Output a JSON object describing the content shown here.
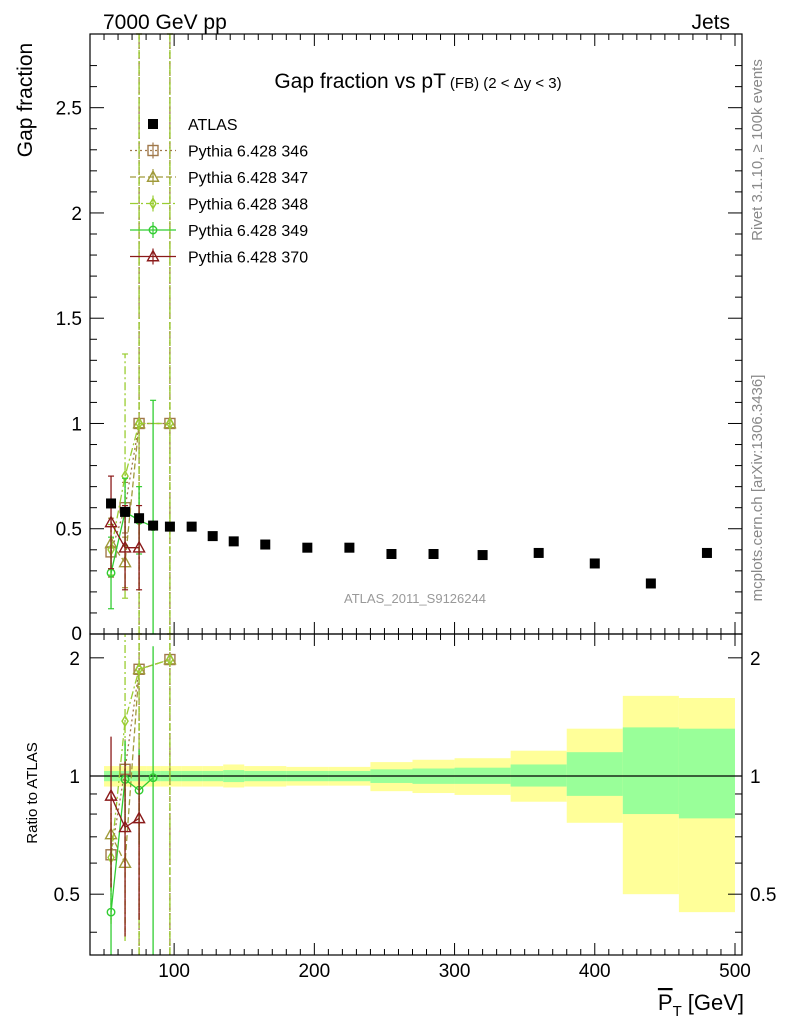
{
  "header": {
    "left": "7000 GeV pp",
    "right": "Jets"
  },
  "side_labels": {
    "rivet": "Rivet 3.1.10, ≥ 100k events",
    "mcplots": "mcplots.cern.ch [arXiv:1306.3436]"
  },
  "chart_data": {
    "type": "scatter",
    "title_main": "Gap fraction vs pT",
    "title_sub": "(FB) (2 < Δy < 3)",
    "ylabel": "Gap fraction",
    "ratio_ylabel": "Ratio to ATLAS",
    "xlabel": "P_T [GeV]",
    "xlabel_main": "P",
    "xlabel_sub": "T",
    "xlabel_unit": "[GeV]",
    "watermark": "ATLAS_2011_S9126244",
    "xlim": [
      40,
      505
    ],
    "ylim": [
      0,
      2.85
    ],
    "ratio_ylim": [
      0.35,
      2.3
    ],
    "x_ticks": [
      100,
      200,
      300,
      400,
      500
    ],
    "x_tick_labels": [
      "100",
      "200",
      "300",
      "400",
      "500"
    ],
    "y_ticks": [
      0.5,
      1,
      1.5,
      2,
      2.5
    ],
    "y_tick_labels": [
      "0.5",
      "1",
      "1.5",
      "2",
      "2.5"
    ],
    "y_bottom_label": "0",
    "ratio_y_ticks": [
      0.5,
      1,
      2
    ],
    "ratio_y_tick_labels": [
      "0.5",
      "1",
      "2"
    ],
    "data": {
      "name": "ATLAS",
      "color": "#000000",
      "points": [
        {
          "x": 55,
          "y": 0.62
        },
        {
          "x": 65,
          "y": 0.58
        },
        {
          "x": 75,
          "y": 0.55
        },
        {
          "x": 85,
          "y": 0.515
        },
        {
          "x": 97,
          "y": 0.51
        },
        {
          "x": 112.5,
          "y": 0.51
        },
        {
          "x": 127.5,
          "y": 0.465
        },
        {
          "x": 142.5,
          "y": 0.44
        },
        {
          "x": 165,
          "y": 0.425
        },
        {
          "x": 195,
          "y": 0.41
        },
        {
          "x": 225,
          "y": 0.41
        },
        {
          "x": 255,
          "y": 0.38
        },
        {
          "x": 285,
          "y": 0.38
        },
        {
          "x": 320,
          "y": 0.375
        },
        {
          "x": 360,
          "y": 0.385
        },
        {
          "x": 400,
          "y": 0.335
        },
        {
          "x": 440,
          "y": 0.24
        },
        {
          "x": 480,
          "y": 0.385
        }
      ]
    },
    "bands": [
      {
        "lo": 50,
        "hi": 60,
        "inner": [
          0.97,
          1.03
        ],
        "outer": [
          0.94,
          1.06
        ]
      },
      {
        "lo": 60,
        "hi": 70,
        "inner": [
          0.97,
          1.03
        ],
        "outer": [
          0.94,
          1.06
        ]
      },
      {
        "lo": 70,
        "hi": 80,
        "inner": [
          0.97,
          1.03
        ],
        "outer": [
          0.94,
          1.06
        ]
      },
      {
        "lo": 80,
        "hi": 90,
        "inner": [
          0.97,
          1.03
        ],
        "outer": [
          0.94,
          1.06
        ]
      },
      {
        "lo": 90,
        "hi": 105,
        "inner": [
          0.97,
          1.03
        ],
        "outer": [
          0.94,
          1.06
        ]
      },
      {
        "lo": 105,
        "hi": 120,
        "inner": [
          0.97,
          1.03
        ],
        "outer": [
          0.94,
          1.06
        ]
      },
      {
        "lo": 120,
        "hi": 135,
        "inner": [
          0.97,
          1.03
        ],
        "outer": [
          0.94,
          1.06
        ]
      },
      {
        "lo": 135,
        "hi": 150,
        "inner": [
          0.965,
          1.035
        ],
        "outer": [
          0.935,
          1.07
        ]
      },
      {
        "lo": 150,
        "hi": 180,
        "inner": [
          0.97,
          1.03
        ],
        "outer": [
          0.94,
          1.06
        ]
      },
      {
        "lo": 180,
        "hi": 210,
        "inner": [
          0.97,
          1.03
        ],
        "outer": [
          0.945,
          1.055
        ]
      },
      {
        "lo": 210,
        "hi": 240,
        "inner": [
          0.97,
          1.03
        ],
        "outer": [
          0.945,
          1.055
        ]
      },
      {
        "lo": 240,
        "hi": 270,
        "inner": [
          0.96,
          1.04
        ],
        "outer": [
          0.915,
          1.085
        ]
      },
      {
        "lo": 270,
        "hi": 300,
        "inner": [
          0.955,
          1.045
        ],
        "outer": [
          0.905,
          1.1
        ]
      },
      {
        "lo": 300,
        "hi": 340,
        "inner": [
          0.955,
          1.05
        ],
        "outer": [
          0.895,
          1.11
        ]
      },
      {
        "lo": 340,
        "hi": 380,
        "inner": [
          0.94,
          1.07
        ],
        "outer": [
          0.86,
          1.16
        ]
      },
      {
        "lo": 380,
        "hi": 420,
        "inner": [
          0.89,
          1.15
        ],
        "outer": [
          0.76,
          1.32
        ]
      },
      {
        "lo": 420,
        "hi": 460,
        "inner": [
          0.8,
          1.33
        ],
        "outer": [
          0.5,
          1.6
        ]
      },
      {
        "lo": 460,
        "hi": 500,
        "inner": [
          0.78,
          1.32
        ],
        "outer": [
          0.45,
          1.58
        ]
      }
    ],
    "series": [
      {
        "name": "Pythia 6.428 346",
        "color": "#a0784a",
        "marker": "square-open",
        "dash": "2,3",
        "points": [
          {
            "x": 55,
            "y": 0.39,
            "e": 0.12,
            "r": 0.63,
            "re": 0.2
          },
          {
            "x": 65,
            "y": 0.6,
            "e": 0.12,
            "r": 1.04,
            "re": 0.2
          },
          {
            "x": 75,
            "y": 1.0,
            "e": 1.9,
            "r": 1.87,
            "re": 2.5
          },
          {
            "x": 97,
            "y": 1.0,
            "e": 1.9,
            "r": 1.98,
            "re": 2.5
          }
        ]
      },
      {
        "name": "Pythia 6.428 347",
        "color": "#a09a3a",
        "marker": "triangle-open",
        "dash": "6,3",
        "points": [
          {
            "x": 55,
            "y": 0.43,
            "e": 0.12,
            "r": 0.71,
            "re": 0.2
          },
          {
            "x": 65,
            "y": 0.34,
            "e": 0.12,
            "r": 0.6,
            "re": 0.2
          },
          {
            "x": 75,
            "y": 1.0,
            "e": 1.9,
            "r": 1.87,
            "re": 2.5
          },
          {
            "x": 97,
            "y": 1.0,
            "e": 1.9,
            "r": 1.98,
            "re": 2.5
          }
        ]
      },
      {
        "name": "Pythia 6.428 348",
        "color": "#9acd32",
        "marker": "diamond-open",
        "dash": "8,3,2,3",
        "points": [
          {
            "x": 55,
            "y": 0.4,
            "e": 0.12,
            "r": 0.62,
            "re": 0.2
          },
          {
            "x": 65,
            "y": 0.75,
            "e": 0.58,
            "r": 1.38,
            "re": 1.0
          },
          {
            "x": 75,
            "y": 1.0,
            "e": 1.9,
            "r": 1.87,
            "re": 2.5
          },
          {
            "x": 97,
            "y": 1.0,
            "e": 1.9,
            "r": 1.98,
            "re": 2.5
          }
        ]
      },
      {
        "name": "Pythia 6.428 349",
        "color": "#32cd32",
        "marker": "circle-open",
        "dash": "",
        "points": [
          {
            "x": 55,
            "y": 0.29,
            "e": 0.17,
            "r": 0.45,
            "re": 0.25
          },
          {
            "x": 65,
            "y": 0.58,
            "e": 0.16,
            "r": 0.98,
            "re": 0.25
          },
          {
            "x": 75,
            "y": 0.54,
            "e": 0.16,
            "r": 0.92,
            "re": 0.25
          },
          {
            "x": 85,
            "y": 0.51,
            "e": 0.6,
            "r": 0.99,
            "re": 1.15
          }
        ]
      },
      {
        "name": "Pythia 6.428 370",
        "color": "#8b1a1a",
        "marker": "triangle-open",
        "dash": "",
        "points": [
          {
            "x": 55,
            "y": 0.53,
            "e": 0.22,
            "r": 0.89,
            "re": 0.37
          },
          {
            "x": 65,
            "y": 0.41,
            "e": 0.2,
            "r": 0.74,
            "re": 0.35
          },
          {
            "x": 75,
            "y": 0.41,
            "e": 0.2,
            "r": 0.78,
            "re": 0.35
          }
        ]
      }
    ]
  }
}
